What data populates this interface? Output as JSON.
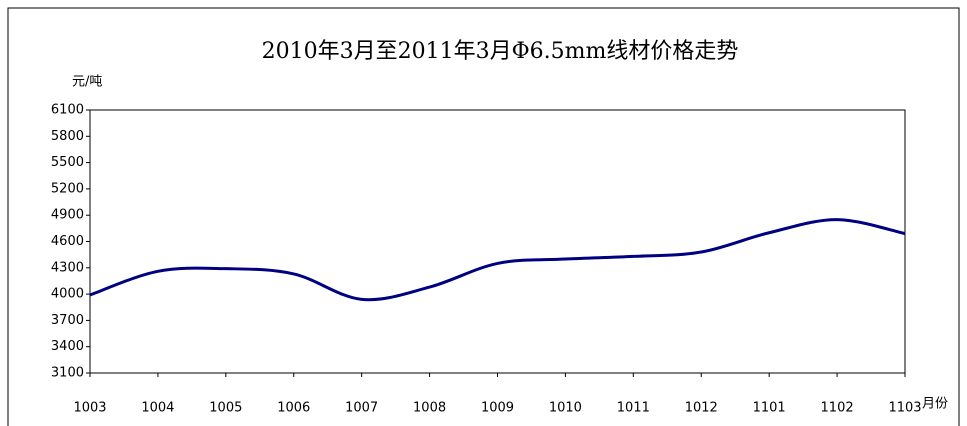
{
  "chart_data": {
    "type": "line",
    "title": "2010年3月至2011年3月Φ6.5mm线材价格走势",
    "y_label": "元/吨",
    "x_label": "月份",
    "categories": [
      "1003",
      "1004",
      "1005",
      "1006",
      "1007",
      "1008",
      "1009",
      "1010",
      "1011",
      "1012",
      "1101",
      "1102",
      "1103"
    ],
    "series": [
      {
        "name": "Φ6.5mm线材",
        "color": "#000080",
        "values": [
          3990,
          4260,
          4290,
          4230,
          3940,
          4080,
          4350,
          4400,
          4430,
          4480,
          4700,
          4850,
          4690
        ]
      }
    ],
    "ylim": [
      3100,
      6100
    ],
    "yticks": [
      3100,
      3400,
      3700,
      4000,
      4300,
      4600,
      4900,
      5200,
      5500,
      5800,
      6100
    ],
    "grid": false,
    "legend": false
  }
}
